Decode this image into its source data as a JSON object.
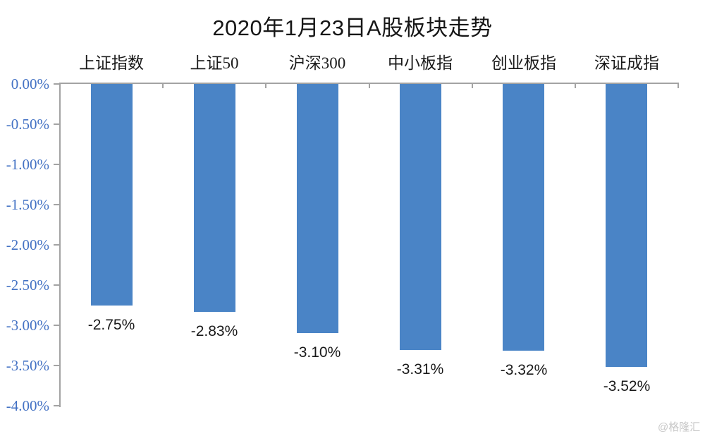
{
  "watermark": "@格隆汇",
  "chart_data": {
    "type": "bar",
    "title": "2020年1月23日A股板块走势",
    "categories": [
      "上证指数",
      "上证50",
      "沪深300",
      "中小板指",
      "创业板指",
      "深证成指"
    ],
    "values": [
      -2.75,
      -2.83,
      -3.1,
      -3.31,
      -3.32,
      -3.52
    ],
    "value_labels": [
      "-2.75%",
      "-2.83%",
      "-3.10%",
      "-3.31%",
      "-3.32%",
      "-3.52%"
    ],
    "y_tick_labels": [
      "0.00%",
      "-0.50%",
      "-1.00%",
      "-1.50%",
      "-2.00%",
      "-2.50%",
      "-3.00%",
      "-3.50%",
      "-4.00%"
    ],
    "ylim": [
      -4.0,
      0.0
    ],
    "y_tick_step": 0.5,
    "grid": false,
    "legend": "none",
    "category_label_position": "top",
    "value_label_position": "below-bar",
    "colors": {
      "bar": "#4A84C6",
      "axis": "#A3A3A3",
      "y_tick_label": "#4472C4",
      "category_label": "#1A1A1A",
      "value_label": "#1A1A1A",
      "title": "#161616",
      "watermark": "#C7C7C7"
    }
  }
}
